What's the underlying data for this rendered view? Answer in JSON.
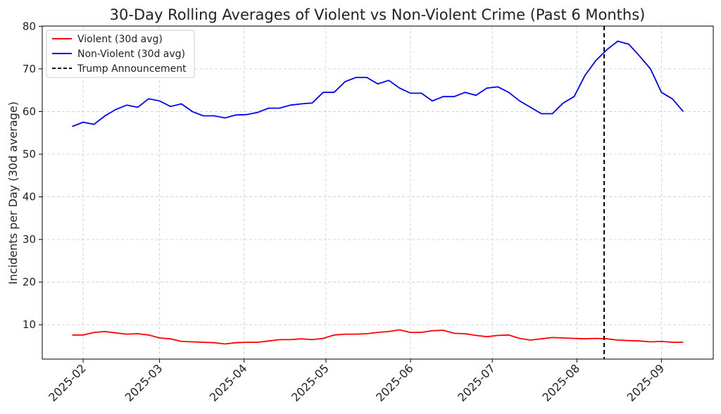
{
  "chart_data": {
    "type": "line",
    "title": "30-Day Rolling Averages of Violent vs Non-Violent Crime (Past 6 Months)",
    "y_label": "Incidents per Day (30d average)",
    "x": [
      "2025-01-28",
      "2025-02-01",
      "2025-02-05",
      "2025-02-09",
      "2025-02-13",
      "2025-02-17",
      "2025-02-21",
      "2025-02-25",
      "2025-03-01",
      "2025-03-05",
      "2025-03-09",
      "2025-03-13",
      "2025-03-17",
      "2025-03-21",
      "2025-03-25",
      "2025-03-29",
      "2025-04-02",
      "2025-04-06",
      "2025-04-10",
      "2025-04-14",
      "2025-04-18",
      "2025-04-22",
      "2025-04-26",
      "2025-04-30",
      "2025-05-04",
      "2025-05-08",
      "2025-05-12",
      "2025-05-16",
      "2025-05-20",
      "2025-05-24",
      "2025-05-28",
      "2025-06-01",
      "2025-06-05",
      "2025-06-09",
      "2025-06-13",
      "2025-06-17",
      "2025-06-21",
      "2025-06-25",
      "2025-06-29",
      "2025-07-03",
      "2025-07-07",
      "2025-07-11",
      "2025-07-15",
      "2025-07-19",
      "2025-07-23",
      "2025-07-27",
      "2025-07-31",
      "2025-08-04",
      "2025-08-08",
      "2025-08-12",
      "2025-08-16",
      "2025-08-20",
      "2025-08-24",
      "2025-08-28",
      "2025-09-01",
      "2025-09-05",
      "2025-09-09"
    ],
    "series": [
      {
        "name": "Violent (30d avg)",
        "color": "#ff0000",
        "values": [
          7.6,
          7.6,
          8.2,
          8.4,
          8.1,
          7.8,
          7.9,
          7.6,
          6.9,
          6.7,
          6.1,
          6.0,
          5.9,
          5.8,
          5.5,
          5.8,
          5.9,
          5.9,
          6.2,
          6.5,
          6.5,
          6.7,
          6.5,
          6.8,
          7.6,
          7.8,
          7.8,
          7.9,
          8.2,
          8.4,
          8.8,
          8.2,
          8.2,
          8.6,
          8.7,
          8.0,
          7.9,
          7.5,
          7.2,
          7.5,
          7.6,
          6.8,
          6.4,
          6.7,
          7.0,
          6.9,
          6.8,
          6.7,
          6.8,
          6.7,
          6.4,
          6.3,
          6.2,
          6.0,
          6.1,
          5.9,
          5.9
        ]
      },
      {
        "name": "Non-Violent (30d avg)",
        "color": "#0000ff",
        "values": [
          56.5,
          57.5,
          57,
          59,
          60.5,
          61.5,
          61,
          63,
          62.5,
          61.2,
          61.8,
          60,
          59,
          59,
          58.5,
          59.2,
          59.3,
          59.8,
          60.8,
          60.8,
          61.5,
          61.8,
          62,
          64.5,
          64.5,
          67,
          68,
          68,
          66.5,
          67.3,
          65.5,
          64.3,
          64.3,
          62.5,
          63.5,
          63.5,
          64.5,
          63.8,
          65.5,
          65.8,
          64.5,
          62.5,
          61,
          59.5,
          59.5,
          62,
          63.5,
          68.5,
          72,
          74.5,
          76.5,
          75.8,
          73,
          70,
          64.5,
          63,
          60
        ]
      }
    ],
    "vlines": [
      {
        "x": "2025-08-11",
        "label": "Trump Announcement",
        "color": "#000000",
        "style": "dashed"
      }
    ],
    "xlim": [
      "2025-01-17",
      "2025-09-20"
    ],
    "xticks": [
      {
        "value": "2025-02-01",
        "label": "2025-02"
      },
      {
        "value": "2025-03-01",
        "label": "2025-03"
      },
      {
        "value": "2025-04-01",
        "label": "2025-04"
      },
      {
        "value": "2025-05-01",
        "label": "2025-05"
      },
      {
        "value": "2025-06-01",
        "label": "2025-06"
      },
      {
        "value": "2025-07-01",
        "label": "2025-07"
      },
      {
        "value": "2025-08-01",
        "label": "2025-08"
      },
      {
        "value": "2025-09-01",
        "label": "2025-09"
      }
    ],
    "ylim": [
      1.95,
      80.05
    ],
    "yticks": [
      10,
      20,
      30,
      40,
      50,
      60,
      70,
      80
    ],
    "grid": true,
    "legend": "upper left"
  }
}
